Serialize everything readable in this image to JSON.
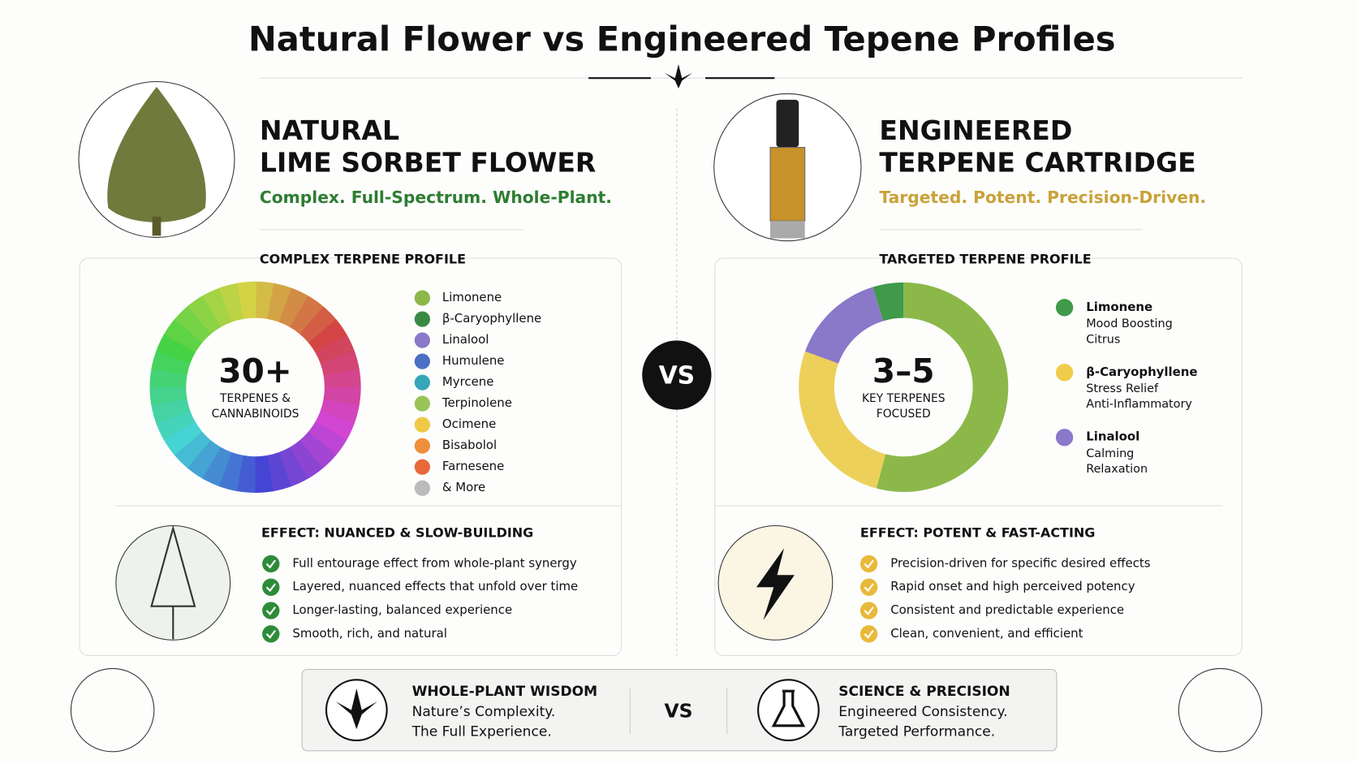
{
  "title": "Natural Flower vs Engineered Tepene Profiles",
  "left": {
    "heading": [
      "NATURAL",
      "LIME SORBET FLOWER"
    ],
    "tagline": "Complex. Full-Spectrum. Whole-Plant.",
    "profile_title": "COMPLEX TERPENE PROFILE",
    "center_value": "30+",
    "center_label": [
      "TERPENES &",
      "CANNABINOIDS"
    ],
    "terpenes": [
      "Limonene",
      "β-Caryophyllene",
      "Linalool",
      "Humulene",
      "Myrcene",
      "Terpinolene",
      "Ocimene",
      "Bisabolol",
      "Farnesene",
      "& More"
    ],
    "effect_title": "EFFECT: NUANCED & SLOW-BUILDING",
    "effects": [
      "Full entourage effect from whole-plant synergy",
      "Layered, nuanced effects that unfold over time",
      "Longer-lasting, balanced experience",
      "Smooth, rich, and natural"
    ]
  },
  "vs": "VS",
  "right": {
    "heading": [
      "ENGINEERED",
      "TERPENE CARTRIDGE"
    ],
    "tagline": "Targeted. Potent. Precision-Driven.",
    "profile_title": "TARGETED TERPENE PROFILE",
    "center_value": "3–5",
    "center_label": [
      "KEY TERPENES",
      "FOCUSED"
    ],
    "terpenes": [
      {
        "name": "Limonene",
        "notes": [
          "Mood Boosting",
          "Citrus"
        ]
      },
      {
        "name": "β-Caryophyllene",
        "notes": [
          "Stress Relief",
          "Anti-Inflammatory"
        ]
      },
      {
        "name": "Linalool",
        "notes": [
          "Calming",
          "Relaxation"
        ]
      }
    ],
    "effect_title": "EFFECT: POTENT & FAST-ACTING",
    "effects": [
      "Precision-driven for specific desired effects",
      "Rapid onset and high perceived potency",
      "Consistent and predictable experience",
      "Clean, convenient, and efficient"
    ]
  },
  "footer": {
    "left": {
      "title": "WHOLE-PLANT WISDOM",
      "lines": [
        "Nature’s Complexity.",
        "The Full Experience."
      ]
    },
    "vs": "VS",
    "right": {
      "title": "SCIENCE & PRECISION",
      "lines": [
        "Engineered Consistency.",
        "Targeted Performance."
      ]
    }
  }
}
